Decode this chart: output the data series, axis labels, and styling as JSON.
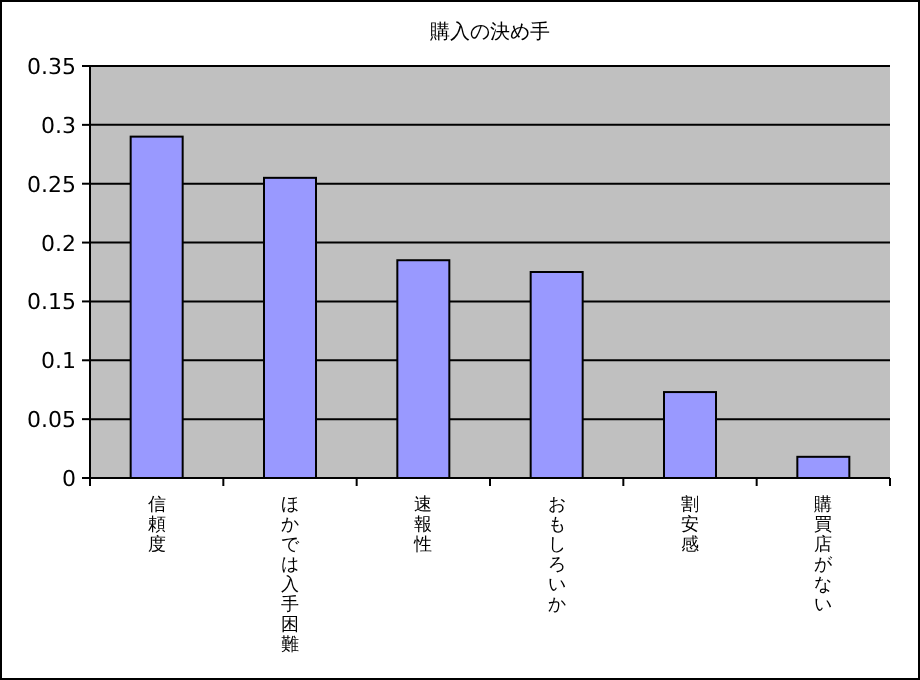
{
  "chart_data": {
    "type": "bar",
    "title": "購入の決め手",
    "categories": [
      "信頼度",
      "ほかでは入手困難",
      "速報性",
      "おもしろいか",
      "割安感",
      "購買店がない"
    ],
    "values": [
      0.29,
      0.255,
      0.185,
      0.175,
      0.073,
      0.018
    ],
    "color": "#9999ff",
    "ylim": [
      0,
      0.35
    ],
    "yticks": [
      0,
      0.05,
      0.1,
      0.15,
      0.2,
      0.25,
      0.3,
      0.35
    ],
    "grid": "y"
  }
}
